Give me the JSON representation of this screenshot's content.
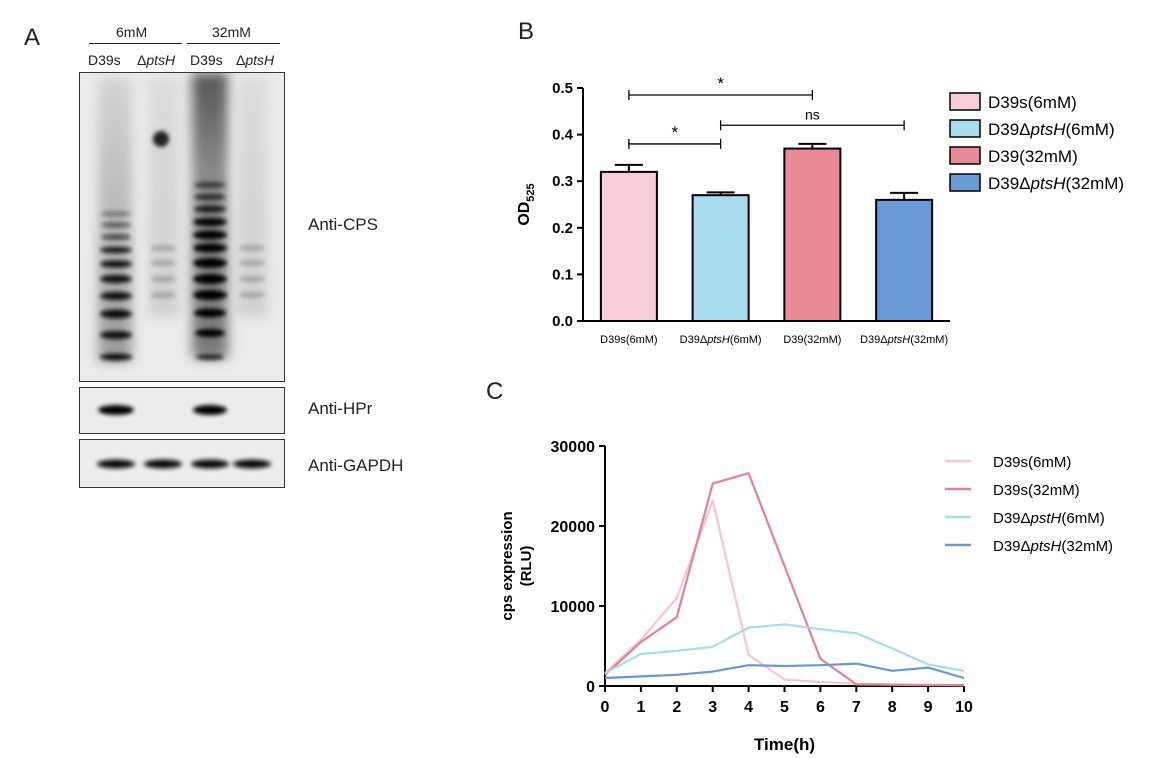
{
  "panels": {
    "a": "A",
    "b": "B",
    "c": "C"
  },
  "blot": {
    "conditions": [
      "6mM",
      "32mM"
    ],
    "lanes": [
      {
        "strain": "D39s",
        "mutant": ""
      },
      {
        "strain": "Δ",
        "mutant": "ptsH"
      },
      {
        "strain": "D39s",
        "mutant": ""
      },
      {
        "strain": "Δ",
        "mutant": "ptsH"
      }
    ],
    "labels": {
      "cps": "Anti-CPS",
      "hpr": "Anti-HPr",
      "gapdh": "Anti-GAPDH"
    }
  },
  "chart_data": [
    {
      "type": "bar",
      "ylabel_main": "OD",
      "ylabel_sub": "525",
      "ylim": [
        0,
        0.5
      ],
      "yticks": [
        "0.0",
        "0.1",
        "0.2",
        "0.3",
        "0.4",
        "0.5"
      ],
      "categories": [
        {
          "pre": "D39s(6mM)",
          "ital": "",
          "post": ""
        },
        {
          "pre": "D39Δ",
          "ital": "ptsH",
          "post": "(6mM)"
        },
        {
          "pre": "D39(32mM)",
          "ital": "",
          "post": ""
        },
        {
          "pre": "D39Δ",
          "ital": "ptsH",
          "post": "(32mM)"
        }
      ],
      "values": [
        0.32,
        0.27,
        0.37,
        0.26
      ],
      "errors": [
        0.015,
        0.006,
        0.01,
        0.015
      ],
      "colors": [
        "#f9cdd8",
        "#a8dcee",
        "#e88b97",
        "#6b9bd6"
      ],
      "legend": [
        {
          "pre": "D39s(6mM)",
          "ital": "",
          "post": ""
        },
        {
          "pre": "D39Δ",
          "ital": "ptsH",
          "post": "(6mM)"
        },
        {
          "pre": "D39(32mM)",
          "ital": "",
          "post": ""
        },
        {
          "pre": "D39Δ",
          "ital": "ptsH",
          "post": "(32mM)"
        }
      ],
      "significance": [
        {
          "from": 0,
          "to": 2,
          "label": "*",
          "y": 0.485
        },
        {
          "from": 0,
          "to": 1,
          "label": "*",
          "y": 0.38
        },
        {
          "from": 1,
          "to": 3,
          "label": "ns",
          "y": 0.42
        }
      ]
    },
    {
      "type": "line",
      "xlabel": "Time(h)",
      "ylabel": [
        "cps expression",
        "(RLU)"
      ],
      "xlim": [
        0,
        10
      ],
      "ylim": [
        0,
        30000
      ],
      "xticks": [
        "0",
        "1",
        "2",
        "3",
        "4",
        "5",
        "6",
        "7",
        "8",
        "9",
        "10"
      ],
      "yticks": [
        "0",
        "10000",
        "20000",
        "30000"
      ],
      "x": [
        0,
        1,
        2,
        3,
        4,
        5,
        6,
        7,
        8,
        9,
        10
      ],
      "series": [
        {
          "pre": "D39s(6mM)",
          "ital": "",
          "post": "",
          "color": "#f7c5cf",
          "values": [
            1600,
            5800,
            11000,
            23200,
            3900,
            800,
            500,
            300,
            200,
            150,
            100
          ]
        },
        {
          "pre": "D39s(32mM)",
          "ital": "",
          "post": "",
          "color": "#e5808f",
          "values": [
            1400,
            5500,
            8600,
            25300,
            26600,
            15000,
            3400,
            200,
            150,
            100,
            100
          ]
        },
        {
          "pre": "D39Δ",
          "ital": "pstH",
          "post": "(6mM)",
          "color": "#a8daeb",
          "values": [
            1600,
            4000,
            4400,
            4900,
            7300,
            7700,
            7100,
            6600,
            4700,
            2700,
            1900
          ]
        },
        {
          "pre": "D39Δ",
          "ital": "ptsH",
          "post": "(32mM)",
          "color": "#6a96d6",
          "values": [
            1000,
            1200,
            1400,
            1800,
            2600,
            2500,
            2600,
            2800,
            1900,
            2300,
            1000
          ]
        }
      ]
    }
  ]
}
